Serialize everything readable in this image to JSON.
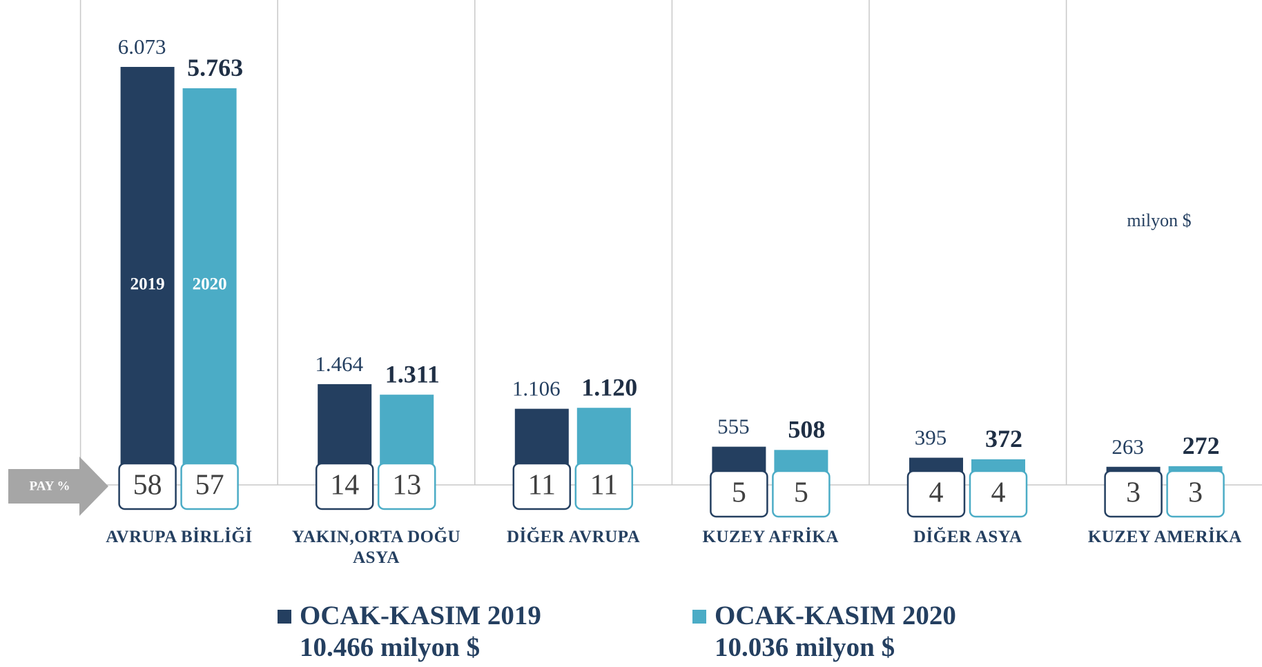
{
  "chart_data": {
    "type": "bar",
    "unit": "milyon $",
    "share_label": "PAY %",
    "categories": [
      "AVRUPA BİRLİĞİ",
      "YAKIN,ORTA DOĞU ASYA",
      "DİĞER AVRUPA",
      "KUZEY AFRİKA",
      "DİĞER ASYA",
      "KUZEY AMERİKA"
    ],
    "series": [
      {
        "name": "OCAK-KASIM 2019",
        "short_name": "2019",
        "total": "10.466 milyon $",
        "color": "#243f60",
        "values": [
          6073,
          1464,
          1106,
          555,
          395,
          263
        ],
        "value_labels": [
          "6.073",
          "1.464",
          "1.106",
          "555",
          "395",
          "263"
        ],
        "shares": [
          58,
          14,
          11,
          5,
          4,
          3
        ]
      },
      {
        "name": "OCAK-KASIM 2020",
        "short_name": "2020",
        "total": "10.036 milyon $",
        "color": "#4bacc6",
        "values": [
          5763,
          1311,
          1120,
          508,
          372,
          272
        ],
        "value_labels": [
          "5.763",
          "1.311",
          "1.120",
          "508",
          "372",
          "272"
        ],
        "shares": [
          57,
          13,
          11,
          5,
          4,
          3
        ]
      }
    ]
  }
}
